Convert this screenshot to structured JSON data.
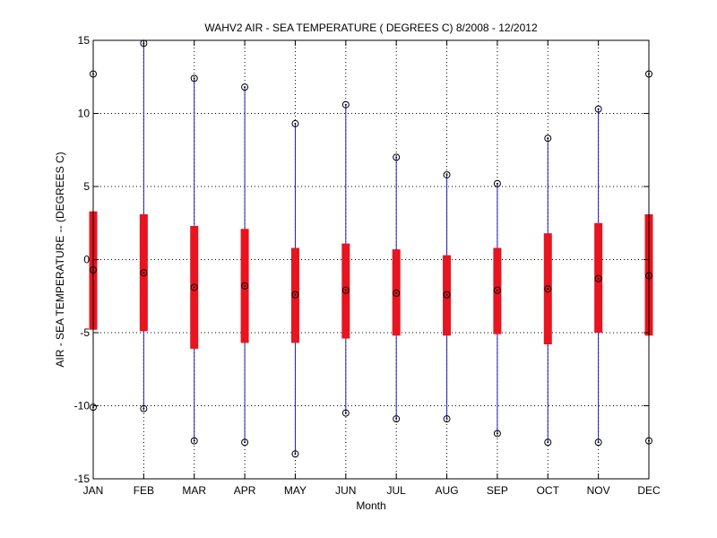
{
  "chart_data": {
    "type": "box",
    "title": "WAHV2  AIR - SEA TEMPERATURE ( DEGREES C) 8/2008 - 12/2012",
    "xlabel": "Month",
    "ylabel": "AIR - SEA TEMPERATURE -- (DEGREES C)",
    "ylim": [
      -15,
      15
    ],
    "yticks": [
      -15,
      -10,
      -5,
      0,
      5,
      10,
      15
    ],
    "ytick_labels": [
      "-15",
      "-10",
      "-5",
      "0",
      "5",
      "10",
      "15"
    ],
    "grid": true,
    "categories": [
      "JAN",
      "FEB",
      "MAR",
      "APR",
      "MAY",
      "JUN",
      "JUL",
      "AUG",
      "SEP",
      "OCT",
      "NOV",
      "DEC"
    ],
    "series": [
      {
        "max": [
          12.7,
          14.8,
          12.4,
          11.8,
          9.3,
          10.6,
          7.0,
          5.8,
          5.2,
          8.3,
          10.3,
          12.7
        ],
        "q3": [
          3.3,
          3.1,
          2.3,
          2.1,
          0.8,
          1.1,
          0.7,
          0.3,
          0.8,
          1.8,
          2.5,
          3.1
        ],
        "median": [
          -0.7,
          -0.9,
          -1.9,
          -1.8,
          -2.4,
          -2.1,
          -2.3,
          -2.4,
          -2.1,
          -2.0,
          -1.3,
          -1.1
        ],
        "q1": [
          -4.8,
          -4.9,
          -6.1,
          -5.7,
          -5.7,
          -5.4,
          -5.2,
          -5.2,
          -5.1,
          -5.8,
          -5.0,
          -5.2
        ],
        "min": [
          -10.1,
          -10.2,
          -12.4,
          -12.5,
          -13.3,
          -10.5,
          -10.9,
          -10.9,
          -11.9,
          -12.5,
          -12.5,
          -12.4
        ]
      }
    ]
  },
  "colors": {
    "box": "#e8141f",
    "whisker": "#1f1fb4",
    "marker": "#000000",
    "axis": "#000000",
    "grid": "#000000"
  }
}
